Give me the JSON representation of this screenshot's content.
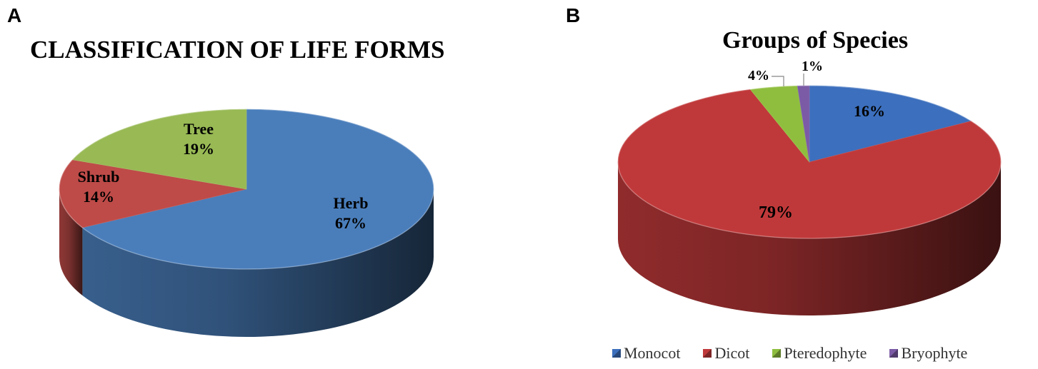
{
  "chart_data": [
    {
      "type": "pie",
      "panel": "A",
      "title": "CLASSIFICATION OF LIFE FORMS",
      "slices": [
        {
          "label": "Herb",
          "value": 67,
          "value_label": "67%",
          "color": "#4a7ebb"
        },
        {
          "label": "Shrub",
          "value": 14,
          "value_label": "14%",
          "color": "#be4b48"
        },
        {
          "label": "Tree",
          "value": 19,
          "value_label": "19%",
          "color": "#98b954"
        }
      ],
      "legend": "none"
    },
    {
      "type": "pie",
      "panel": "B",
      "title": "Groups of Species",
      "slices": [
        {
          "label": "Monocot",
          "value": 16,
          "value_label": "16%",
          "color": "#3c6fbd"
        },
        {
          "label": "Dicot",
          "value": 79,
          "value_label": "79%",
          "color": "#c0393a"
        },
        {
          "label": "Pteredophyte",
          "value": 4,
          "value_label": "4%",
          "color": "#8fbe3e"
        },
        {
          "label": "Bryophyte",
          "value": 1,
          "value_label": "1%",
          "color": "#7b5aa6"
        }
      ],
      "legend": "bottom"
    }
  ]
}
